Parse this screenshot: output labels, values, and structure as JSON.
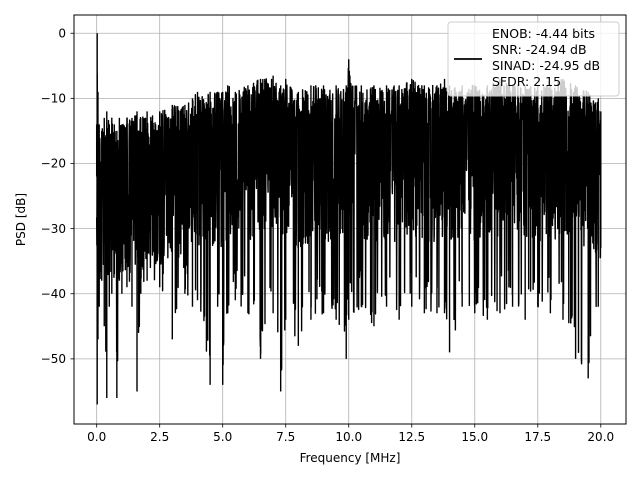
{
  "chart_data": {
    "type": "line",
    "title": "",
    "xlabel": "Frequency [MHz]",
    "ylabel": "PSD [dB]",
    "xlim": [
      -0.9,
      21.0
    ],
    "ylim": [
      -60.0,
      2.8
    ],
    "xticks": [
      0.0,
      2.5,
      5.0,
      7.5,
      10.0,
      12.5,
      15.0,
      17.5,
      20.0
    ],
    "xtick_labels": [
      "0.0",
      "2.5",
      "5.0",
      "7.5",
      "10.0",
      "12.5",
      "15.0",
      "17.5",
      "20.0"
    ],
    "yticks": [
      0,
      -10,
      -20,
      -30,
      -40,
      -50
    ],
    "ytick_labels": [
      "0",
      "−10",
      "−20",
      "−30",
      "−40",
      "−50"
    ],
    "grid": true,
    "legend": {
      "placement": "top-right",
      "entries": [
        {
          "lines": [
            "ENOB: -4.44 bits",
            "SNR: -24.94 dB",
            "SINAD: -24.95 dB",
            "SFDR: 2.15"
          ],
          "color": "#000000"
        }
      ]
    },
    "series": [
      {
        "color": "#000000",
        "description": "dense noise-like PSD trace; noise floor approx -10 to -35 dB from 0 to 20 MHz",
        "x": [
          0.0,
          0.02,
          0.05,
          0.1,
          0.2,
          0.3,
          0.4,
          0.5,
          0.6,
          0.7,
          0.8,
          0.9,
          1.0,
          1.2,
          1.4,
          1.6,
          1.75,
          2.0,
          2.5,
          3.0,
          3.5,
          3.8,
          4.0,
          4.5,
          4.8,
          5.0,
          5.2,
          5.5,
          6.0,
          6.5,
          7.0,
          7.3,
          7.5,
          8.0,
          8.5,
          9.0,
          9.5,
          9.9,
          10.0,
          10.5,
          11.0,
          11.5,
          12.0,
          12.5,
          13.0,
          13.5,
          13.8,
          14.0,
          14.5,
          15.0,
          15.5,
          16.0,
          16.5,
          17.0,
          17.5,
          18.0,
          18.5,
          19.0,
          19.5,
          19.9,
          20.0
        ],
        "y_high": [
          -14,
          0.0,
          -9,
          -14,
          -15,
          -13,
          -12,
          -14,
          -13,
          -14,
          -15,
          -13,
          -14,
          -13,
          -13,
          -12,
          -13,
          -12,
          -12,
          -11,
          -11,
          -10,
          -9,
          -9,
          -9,
          -9,
          -8,
          -9,
          -8,
          -7,
          -6.5,
          -8,
          -7,
          -9,
          -8,
          -8,
          -8,
          -8,
          -4,
          -8,
          -8,
          -8,
          -8,
          -7,
          -8,
          -8,
          -7,
          -8,
          -8,
          -8,
          -8,
          -7,
          -8,
          -8,
          -8,
          -8,
          -7,
          -8,
          -9,
          -10,
          -12
        ],
        "y_low": [
          -22,
          -57,
          -47,
          -42,
          -38,
          -45,
          -56,
          -42,
          -40,
          -37,
          -56,
          -38,
          -40,
          -39,
          -42,
          -55,
          -40,
          -38,
          -39,
          -47,
          -40,
          -42,
          -41,
          -54,
          -42,
          -54,
          -43,
          -41,
          -43,
          -50,
          -43,
          -55,
          -44,
          -48,
          -44,
          -43,
          -44,
          -50,
          -44,
          -42,
          -45,
          -42,
          -44,
          -42,
          -43,
          -43,
          -43,
          -49,
          -42,
          -43,
          -44,
          -43,
          -42,
          -44,
          -42,
          -43,
          -44,
          -50,
          -53,
          -42,
          -33
        ]
      }
    ]
  }
}
